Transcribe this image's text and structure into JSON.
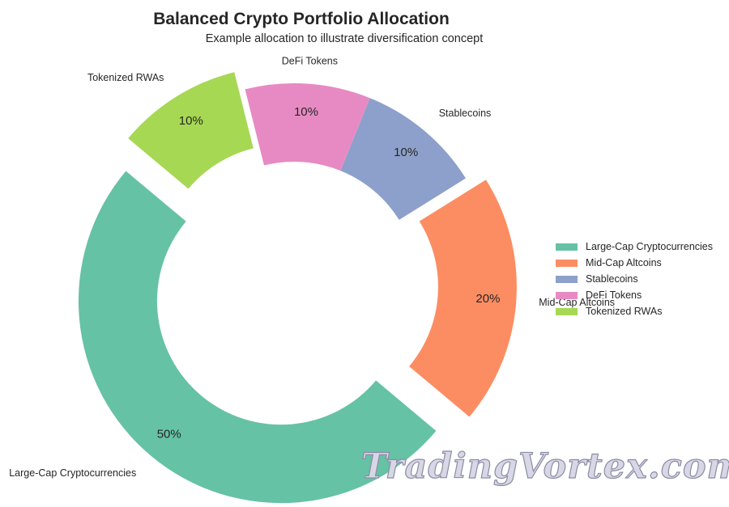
{
  "chart_data": {
    "type": "pie",
    "title": "Balanced Crypto Portfolio Allocation",
    "subtitle": "Example allocation to illustrate diversification concept",
    "categories": [
      "Large-Cap Cryptocurrencies",
      "Mid-Cap Altcoins",
      "Stablecoins",
      "DeFi Tokens",
      "Tokenized RWAs"
    ],
    "values": [
      50,
      20,
      10,
      10,
      10
    ],
    "value_labels": [
      "50%",
      "20%",
      "10%",
      "10%",
      "10%"
    ],
    "colors": [
      "#66c2a5",
      "#fc8d62",
      "#8da0cb",
      "#e78ac3",
      "#a6d854"
    ],
    "exploded": [
      true,
      true,
      false,
      false,
      true
    ],
    "donut": true,
    "legend": {
      "placement": "right",
      "entries": [
        "Large-Cap Cryptocurrencies",
        "Mid-Cap Altcoins",
        "Stablecoins",
        "DeFi Tokens",
        "Tokenized RWAs"
      ]
    }
  },
  "watermark": "TradingVortex.com"
}
